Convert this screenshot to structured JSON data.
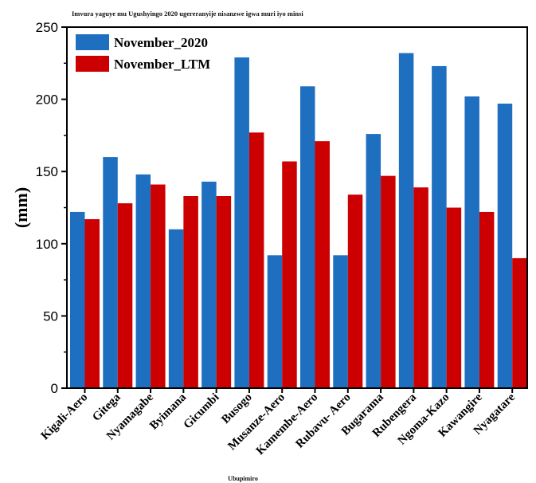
{
  "chart_data": {
    "type": "bar",
    "title": "Imvura yaguye mu Ugushyingo 2020 ugereranyije nisanzwe igwa  muri iyo minsi",
    "xlabel": "Ubupimiro",
    "ylabel": "(mm)",
    "ylim": [
      0,
      250
    ],
    "yticks": [
      "0",
      "50",
      "100",
      "150",
      "200",
      "250"
    ],
    "grid": false,
    "legend_position": "top-left",
    "categories": [
      "Kigali-Aero",
      "Gitega",
      "Nyamagabe",
      "Byimana",
      "Gicumbi",
      "Busogo",
      "Musanze-Aero",
      "Kamembe-Aero",
      "Rubavu- Aero",
      "Bugarama",
      "Rubengera",
      "Ngoma-Kazo",
      "Kawangire",
      "Nyagatare"
    ],
    "series": [
      {
        "name": "November_2020",
        "color": "#1f6fc0",
        "values": [
          122,
          160,
          148,
          110,
          143,
          229,
          92,
          209,
          92,
          176,
          232,
          223,
          202,
          197
        ]
      },
      {
        "name": "November_LTM",
        "color": "#cc0000",
        "values": [
          117,
          128,
          141,
          133,
          133,
          177,
          157,
          171,
          134,
          147,
          139,
          125,
          122,
          90
        ]
      }
    ]
  }
}
